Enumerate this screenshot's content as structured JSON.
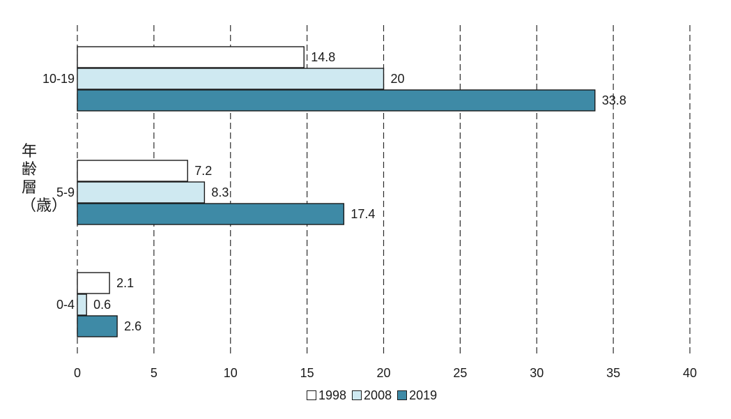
{
  "chart_data": {
    "type": "bar",
    "orientation": "horizontal",
    "categories": [
      "10-19",
      "5-9",
      "0-4"
    ],
    "series": [
      {
        "name": "1998",
        "color": "#ffffff",
        "values": [
          14.8,
          7.2,
          2.1
        ]
      },
      {
        "name": "2008",
        "color": "#cfe9f1",
        "values": [
          20,
          8.3,
          0.6
        ]
      },
      {
        "name": "2019",
        "color": "#3e8aa6",
        "values": [
          33.8,
          17.4,
          2.6
        ]
      }
    ],
    "data_labels": [
      [
        "14.8",
        "7.2",
        "2.1"
      ],
      [
        "20",
        "8.3",
        "0.6"
      ],
      [
        "33.8",
        "17.4",
        "2.6"
      ]
    ],
    "xticks": [
      "0",
      "5",
      "10",
      "15",
      "20",
      "25",
      "30",
      "35",
      "40"
    ],
    "xlim": [
      0,
      40
    ],
    "ylabel": "年齢層（歳）",
    "grid": "vertical dashed",
    "legend": "bottom"
  }
}
